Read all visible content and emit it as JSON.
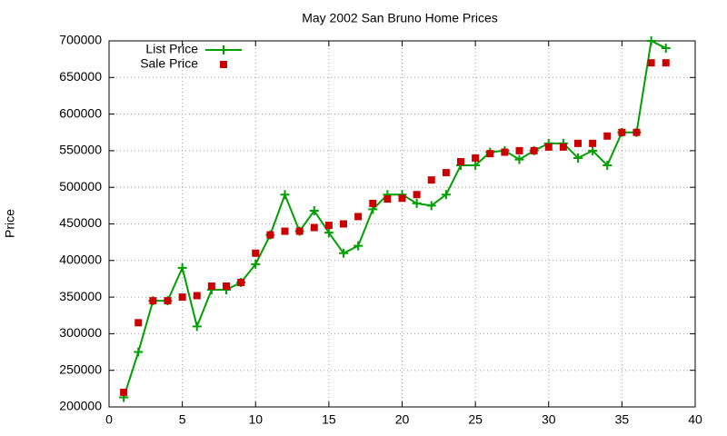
{
  "chart_data": {
    "type": "line",
    "title": "May 2002 San Bruno Home Prices",
    "y_label": "Price",
    "x": [
      1,
      2,
      3,
      4,
      5,
      6,
      7,
      8,
      9,
      10,
      11,
      12,
      13,
      14,
      15,
      16,
      17,
      18,
      19,
      20,
      21,
      22,
      23,
      24,
      25,
      26,
      27,
      28,
      29,
      30,
      31,
      32,
      33,
      34,
      35,
      36,
      37,
      38
    ],
    "series": [
      {
        "name": "List Price",
        "color": "#00a000",
        "style": "linespoints",
        "marker": "plus",
        "values": [
          213000,
          275000,
          345000,
          345000,
          390000,
          310000,
          360000,
          360000,
          370000,
          395000,
          435000,
          490000,
          440000,
          468000,
          438000,
          410000,
          420000,
          470000,
          490000,
          490000,
          478000,
          475000,
          490000,
          530000,
          530000,
          548000,
          550000,
          538000,
          550000,
          560000,
          560000,
          540000,
          550000,
          530000,
          575000,
          575000,
          700000,
          690000
        ]
      },
      {
        "name": "Sale Price",
        "color": "#cc0000",
        "style": "points",
        "marker": "square",
        "values": [
          220000,
          315000,
          345000,
          345000,
          350000,
          352000,
          365000,
          365000,
          370000,
          410000,
          435000,
          440000,
          440000,
          445000,
          448000,
          450000,
          460000,
          478000,
          484000,
          485000,
          490000,
          510000,
          520000,
          535000,
          540000,
          546000,
          548000,
          550000,
          550000,
          555000,
          555000,
          560000,
          560000,
          570000,
          575000,
          575000,
          670000,
          670000
        ]
      }
    ],
    "xlim": [
      0,
      40
    ],
    "xticks": [
      0,
      5,
      10,
      15,
      20,
      25,
      30,
      35,
      40
    ],
    "ylim": [
      200000,
      700000
    ],
    "yticks": [
      200000,
      250000,
      300000,
      350000,
      400000,
      450000,
      500000,
      550000,
      600000,
      650000,
      700000
    ],
    "grid": true,
    "legend": "top-left"
  }
}
